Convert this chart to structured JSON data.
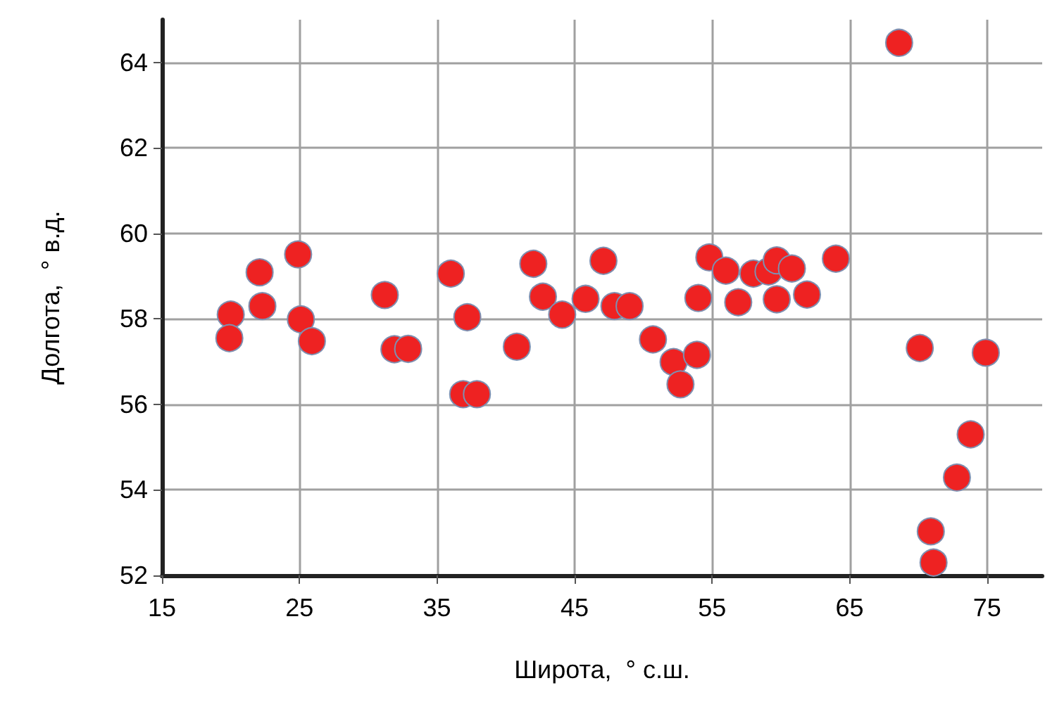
{
  "chart_data": {
    "type": "scatter",
    "xlabel": "Широта,  ° с.ш.",
    "ylabel": "Долгота,  ° в.д.",
    "x": [
      20.0,
      19.9,
      22.1,
      22.3,
      24.9,
      25.1,
      25.9,
      31.2,
      31.9,
      32.9,
      36.0,
      37.2,
      36.9,
      37.9,
      40.8,
      42.0,
      42.7,
      44.1,
      45.8,
      47.1,
      47.9,
      49.0,
      50.7,
      52.2,
      53.9,
      52.7,
      54.0,
      54.8,
      56.0,
      56.9,
      58.0,
      59.1,
      59.7,
      60.8,
      59.7,
      61.9,
      64.0,
      68.6,
      70.1,
      74.9,
      73.8,
      72.8,
      70.9,
      71.1
    ],
    "series": [
      {
        "color": "#ee2222",
        "values": [
          58.1,
          57.55,
          59.09,
          58.3,
          59.51,
          57.99,
          57.48,
          58.56,
          57.29,
          57.3,
          59.06,
          58.04,
          56.24,
          56.24,
          57.35,
          59.29,
          58.52,
          58.1,
          58.47,
          59.36,
          58.3,
          58.3,
          57.52,
          56.99,
          57.16,
          56.47,
          58.49,
          59.44,
          59.13,
          58.39,
          59.06,
          59.11,
          59.37,
          59.18,
          58.46,
          58.57,
          59.41,
          64.46,
          57.32,
          57.21,
          55.3,
          54.29,
          53.03,
          52.3
        ]
      }
    ],
    "xlim": [
      15,
      79
    ],
    "xticks": [
      15,
      25,
      35,
      45,
      55,
      65,
      75
    ],
    "ylim": [
      52,
      65
    ],
    "yticks": [
      52,
      54,
      56,
      58,
      60,
      62,
      64
    ],
    "grid": true,
    "marker": "circle"
  }
}
